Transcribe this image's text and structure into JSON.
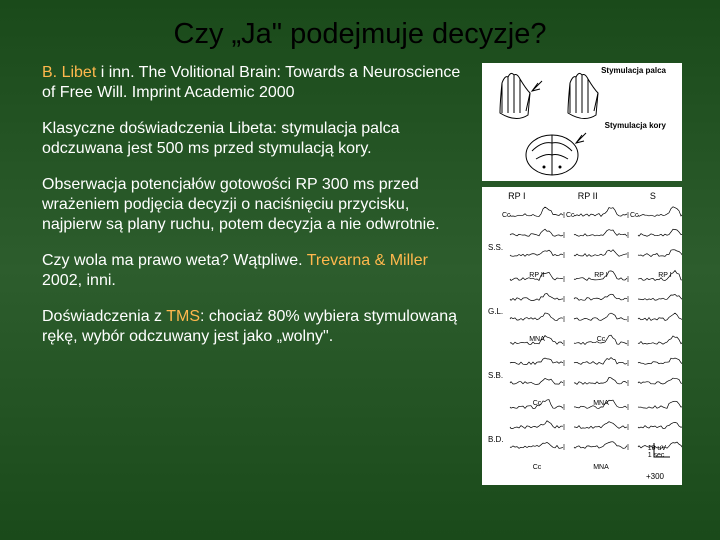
{
  "title": "Czy „Ja\" podejmuje decyzje?",
  "paras": {
    "p1_a": "B. Libet",
    "p1_b": " i inn. The Volitional Brain: Towards a Neuroscience of Free Will. Imprint Academic 2000",
    "p2": "Klasyczne doświadczenia Libeta: stymulacja palca odczuwana jest 500 ms przed stymulacją kory.",
    "p3": "Obserwacja potencjałów gotowości RP 300 ms przed wrażeniem podjęcia decyzji o naciśnięciu przycisku, najpierw są plany ruchu, potem decyzja a nie odwrotnie.",
    "p4_a": "Czy wola ma prawo weta? Wątpliwe. ",
    "p4_b": "Trevarna & Miller",
    "p4_c": " 2002, inni.",
    "p5_a": "Doświadczenia z ",
    "p5_b": "TMS",
    "p5_c": ": chociaż 80% wybiera stymulowaną rękę, wybór odczuwany jest jako „wolny\"."
  },
  "fig1": {
    "label1": "Stymulacja palca",
    "label2": "Stymulacja kory",
    "hand_stroke": "#000000",
    "brain_stroke": "#000000",
    "bg": "#ffffff"
  },
  "fig2": {
    "headers": [
      "RP I",
      "RP II",
      "S"
    ],
    "row_labels": [
      "S.S.",
      "G.L.",
      "S.B.",
      "B.D."
    ],
    "sub_labels_top": [
      "Cc",
      "Cc",
      "Cc"
    ],
    "sub_labels_a": [
      "RP II",
      "RP I",
      "RP I"
    ],
    "sub_labels_b": [
      "MNA",
      "Cc"
    ],
    "sub_labels_c": [
      "Cc",
      "MNA"
    ],
    "sub_labels_d": [
      "Cc",
      "MNA"
    ],
    "scale_v": "10 uV",
    "scale_h": "1 sec",
    "xaxis_end": "+300",
    "trace_color": "#000000",
    "bg": "#ffffff",
    "trace_rows": 12
  },
  "colors": {
    "title": "#000000",
    "text": "#ffffff",
    "highlight": "#ffb84d"
  }
}
